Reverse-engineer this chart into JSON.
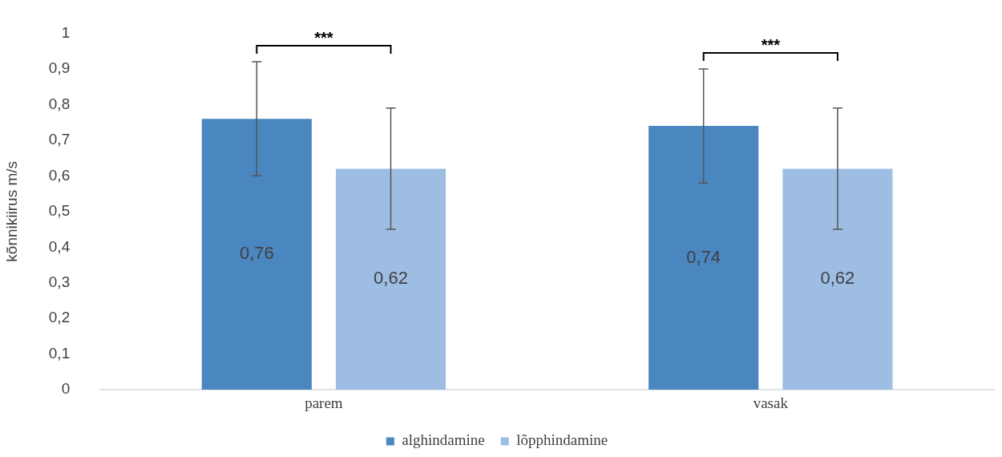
{
  "chart_data": {
    "type": "bar",
    "ylabel": "kõnnikiirus m/s",
    "categories": [
      "parem",
      "vasak"
    ],
    "series": [
      {
        "name": "alghindamine",
        "color": "#4a86c0",
        "values": [
          0.76,
          0.74
        ],
        "errors": [
          0.16,
          0.16
        ],
        "value_labels": [
          "0,76",
          "0,74"
        ]
      },
      {
        "name": "lõpphindamine",
        "color": "#9dbde3",
        "values": [
          0.62,
          0.62
        ],
        "errors": [
          0.17,
          0.17
        ],
        "value_labels": [
          "0,62",
          "0,62"
        ]
      }
    ],
    "ylim": [
      0,
      1
    ],
    "yticks": [
      0,
      {
        "value": 0.1,
        "label": "0,1"
      },
      {
        "value": 0.2,
        "label": "0,2"
      },
      {
        "value": 0.3,
        "label": "0,3"
      },
      {
        "value": 0.4,
        "label": "0,4"
      },
      {
        "value": 0.5,
        "label": "0,5"
      },
      {
        "value": 0.6,
        "label": "0,6"
      },
      {
        "value": 0.7,
        "label": "0,7"
      },
      {
        "value": 0.8,
        "label": "0,8"
      },
      {
        "value": 0.9,
        "label": "0,9"
      },
      1
    ],
    "grid": false,
    "legend": "bottom",
    "annotations": [
      "***",
      "***"
    ]
  }
}
